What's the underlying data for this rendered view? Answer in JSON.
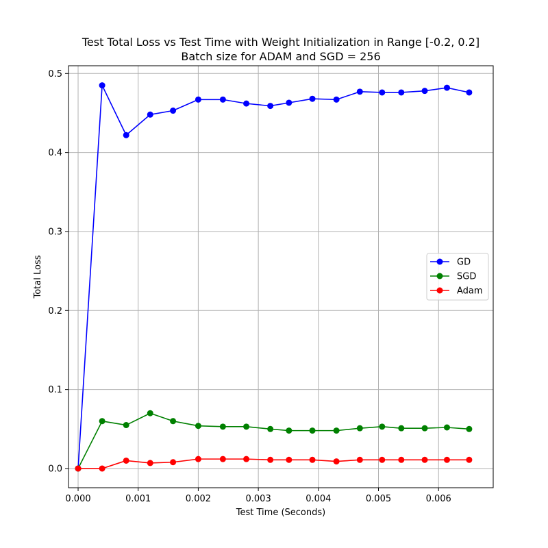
{
  "chart_data": {
    "type": "line",
    "title": "Test Total Loss vs Test Time with Weight Initialization in Range [-0.2, 0.2]",
    "subtitle": "Batch size for ADAM and SGD = 256",
    "xlabel": "Test Time (Seconds)",
    "ylabel": "Total Loss",
    "xlim": [
      -0.00016,
      0.00691
    ],
    "ylim": [
      -0.0243,
      0.5098
    ],
    "xticks": [
      0.0,
      0.001,
      0.002,
      0.003,
      0.004,
      0.005,
      0.006
    ],
    "xtick_labels": [
      "0.000",
      "0.001",
      "0.002",
      "0.003",
      "0.004",
      "0.005",
      "0.006"
    ],
    "yticks": [
      0.0,
      0.1,
      0.2,
      0.3,
      0.4,
      0.5
    ],
    "ytick_labels": [
      "0.0",
      "0.1",
      "0.2",
      "0.3",
      "0.4",
      "0.5"
    ],
    "grid": true,
    "legend_position": "center-right",
    "x": [
      0.0,
      0.0004,
      0.0008,
      0.0012,
      0.00158,
      0.002,
      0.00241,
      0.0028,
      0.0032,
      0.00351,
      0.0039,
      0.0043,
      0.00469,
      0.00506,
      0.00538,
      0.00577,
      0.00614,
      0.00651
    ],
    "series": [
      {
        "name": "GD",
        "color": "#0000ff",
        "values": [
          0.0,
          0.485,
          0.422,
          0.448,
          0.453,
          0.467,
          0.467,
          0.462,
          0.459,
          0.463,
          0.468,
          0.467,
          0.477,
          0.476,
          0.476,
          0.478,
          0.482,
          0.476
        ]
      },
      {
        "name": "SGD",
        "color": "#008000",
        "values": [
          0.0,
          0.06,
          0.055,
          0.07,
          0.06,
          0.054,
          0.053,
          0.053,
          0.05,
          0.048,
          0.048,
          0.048,
          0.051,
          0.053,
          0.051,
          0.051,
          0.052,
          0.05
        ]
      },
      {
        "name": "Adam",
        "color": "#ff0000",
        "values": [
          0.0,
          0.0,
          0.01,
          0.007,
          0.008,
          0.012,
          0.012,
          0.012,
          0.011,
          0.011,
          0.011,
          0.009,
          0.011,
          0.011,
          0.011,
          0.011,
          0.011,
          0.011
        ]
      }
    ]
  }
}
